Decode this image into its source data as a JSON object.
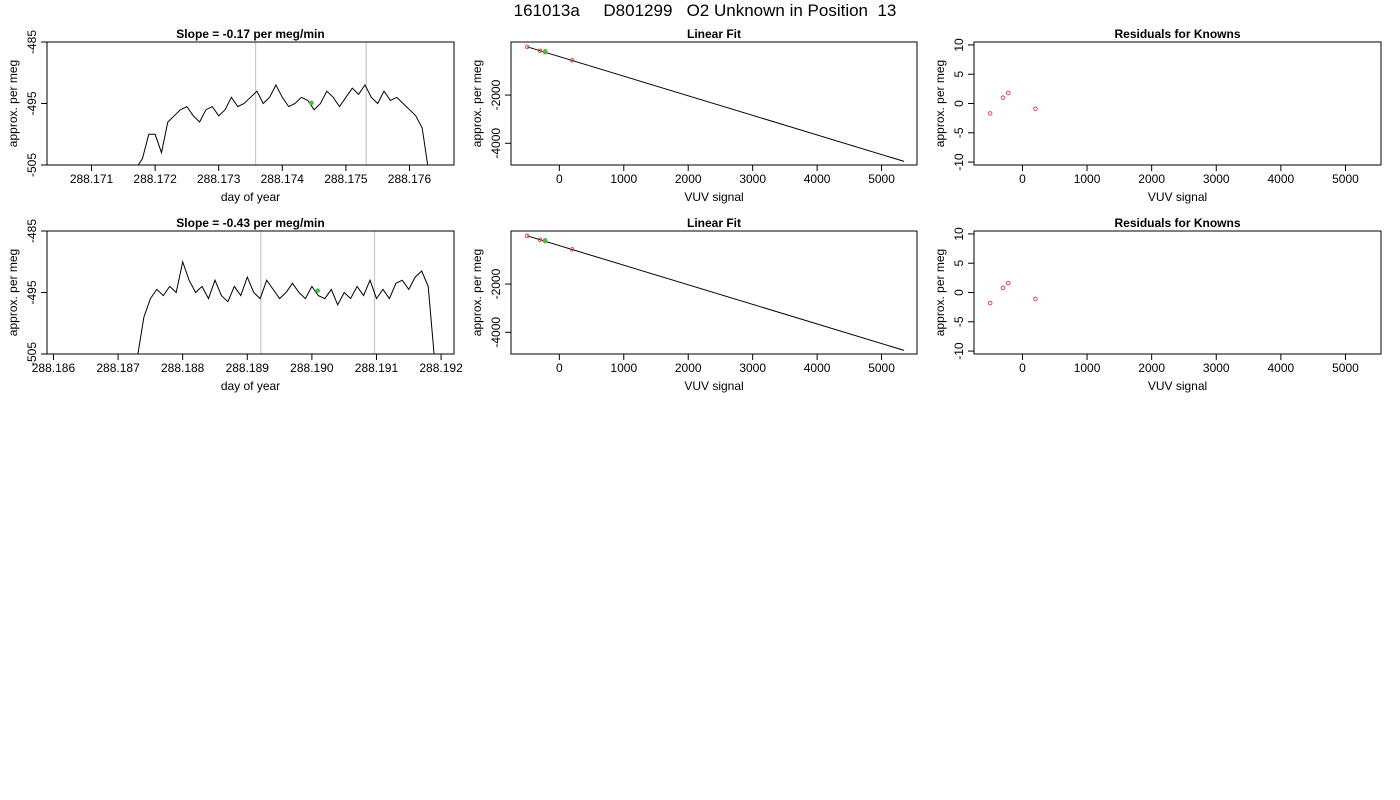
{
  "title": "161013a     D801299   O2 Unknown in Position  13",
  "colors": {
    "line": "#000000",
    "vline": "#c8c8c8",
    "known": "#e0484a",
    "unknown": "#3ec43e"
  },
  "chart_data": [
    {
      "type": "line",
      "title": "Slope =  -0.17  per meg/min",
      "xlabel": "day of year",
      "ylabel": "approx. per meg",
      "xlim": [
        288.1703,
        288.1767
      ],
      "ylim": [
        -505,
        -485
      ],
      "xticks": [
        288.171,
        288.172,
        288.173,
        288.174,
        288.175,
        288.176
      ],
      "xtick_labels": [
        "288.171",
        "288.172",
        "288.173",
        "288.174",
        "288.175",
        "288.176"
      ],
      "yticks": [
        -485,
        -495,
        -505
      ],
      "ytick_labels": [
        "-485",
        "-495",
        "-505"
      ],
      "vlines": [
        288.17358,
        288.17532
      ],
      "unknown_point": {
        "x": 288.17446,
        "y": -494.9
      },
      "series": [
        {
          "x": [
            288.1717,
            288.1718,
            288.1719,
            288.172,
            288.1721,
            288.1722,
            288.1723,
            288.1724,
            288.1725,
            288.1726,
            288.1727,
            288.1728,
            288.1729,
            288.173,
            288.1731,
            288.1732,
            288.1733,
            288.1734,
            288.1735,
            288.1736,
            288.1737,
            288.1738,
            288.1739,
            288.174,
            288.1741,
            288.1742,
            288.1743,
            288.1744,
            288.1745,
            288.1746,
            288.1747,
            288.1748,
            288.1749,
            288.175,
            288.1751,
            288.1752,
            288.1753,
            288.1754,
            288.1755,
            288.1756,
            288.1757,
            288.1758,
            288.1759,
            288.176,
            288.1761,
            288.1762,
            288.1763
          ],
          "y": [
            -505.5,
            -504,
            -500,
            -500,
            -503,
            -498,
            -497,
            -496,
            -495.5,
            -497,
            -498,
            -496,
            -495.5,
            -497,
            -496,
            -494,
            -495.5,
            -495,
            -494,
            -493,
            -495,
            -494,
            -492,
            -494,
            -495.5,
            -495,
            -494,
            -494.5,
            -496,
            -495,
            -493,
            -494,
            -495.5,
            -494,
            -492.5,
            -493.5,
            -492,
            -494,
            -495,
            -493,
            -494.5,
            -494,
            -495,
            -496,
            -497,
            -499,
            -506
          ]
        }
      ]
    },
    {
      "type": "scatter",
      "title": "Linear Fit",
      "xlabel": "VUV signal",
      "ylabel": "approx. per meg",
      "xlim": [
        -750,
        5550
      ],
      "ylim": [
        -4900,
        200
      ],
      "xticks": [
        0,
        1000,
        2000,
        3000,
        4000,
        5000
      ],
      "xtick_labels": [
        "0",
        "1000",
        "2000",
        "3000",
        "4000",
        "5000"
      ],
      "yticks": [
        -2000,
        -4000
      ],
      "ytick_labels": [
        "-2000",
        "-4000"
      ],
      "fit_line": {
        "x": [
          -500,
          5350
        ],
        "y": [
          0,
          -4750
        ]
      },
      "known_points": {
        "x": [
          -500,
          -300,
          -220,
          200
        ],
        "y": [
          0,
          -165,
          -220,
          -560
        ]
      },
      "unknown_point": {
        "x": -220,
        "y": -185
      }
    },
    {
      "type": "scatter",
      "title": "Residuals for Knowns",
      "xlabel": "VUV signal",
      "ylabel": "approx. per meg",
      "xlim": [
        -750,
        5550
      ],
      "ylim": [
        -10.5,
        10.5
      ],
      "xticks": [
        0,
        1000,
        2000,
        3000,
        4000,
        5000
      ],
      "xtick_labels": [
        "0",
        "1000",
        "2000",
        "3000",
        "4000",
        "5000"
      ],
      "yticks": [
        10,
        5,
        0,
        -5,
        -10
      ],
      "ytick_labels": [
        "10",
        "5",
        "0",
        "-5",
        "-10"
      ],
      "known_points": {
        "x": [
          -500,
          -300,
          -220,
          200
        ],
        "y": [
          -1.7,
          1.0,
          1.8,
          -0.9
        ]
      }
    },
    {
      "type": "line",
      "title": "Slope =  -0.43  per meg/min",
      "xlabel": "day of year",
      "ylabel": "approx. per meg",
      "xlim": [
        288.1859,
        288.1922
      ],
      "ylim": [
        -505,
        -485
      ],
      "xticks": [
        288.186,
        288.187,
        288.188,
        288.189,
        288.19,
        288.191,
        288.192
      ],
      "xtick_labels": [
        "288.186",
        "288.187",
        "288.188",
        "288.189",
        "288.190",
        "288.191",
        "288.192"
      ],
      "yticks": [
        -485,
        -495,
        -505
      ],
      "ytick_labels": [
        "-485",
        "-495",
        "-505"
      ],
      "vlines": [
        288.18921,
        288.19097
      ],
      "unknown_point": {
        "x": 288.19009,
        "y": -494.7
      },
      "series": [
        {
          "x": [
            288.1873,
            288.1874,
            288.1875,
            288.1876,
            288.1877,
            288.1878,
            288.1879,
            288.188,
            288.1881,
            288.1882,
            288.1883,
            288.1884,
            288.1885,
            288.1886,
            288.1887,
            288.1888,
            288.1889,
            288.189,
            288.1891,
            288.1892,
            288.1893,
            288.1894,
            288.1895,
            288.1896,
            288.1897,
            288.1898,
            288.1899,
            288.19,
            288.1901,
            288.1902,
            288.1903,
            288.1904,
            288.1905,
            288.1906,
            288.1907,
            288.1908,
            288.1909,
            288.191,
            288.1911,
            288.1912,
            288.1913,
            288.1914,
            288.1915,
            288.1916,
            288.1917,
            288.1918,
            288.1919
          ],
          "y": [
            -505.5,
            -499,
            -496,
            -494.5,
            -495.5,
            -494,
            -495,
            -490,
            -493,
            -495,
            -494,
            -496,
            -493,
            -495.5,
            -496.5,
            -494,
            -495.5,
            -492.5,
            -495,
            -496,
            -493,
            -494.5,
            -496,
            -495,
            -493.5,
            -495,
            -496,
            -494,
            -495.5,
            -496,
            -494.5,
            -497,
            -495,
            -496,
            -494,
            -495.5,
            -493,
            -496,
            -494.5,
            -496,
            -493.5,
            -493,
            -494.5,
            -492.5,
            -491.5,
            -494,
            -506
          ]
        }
      ]
    },
    {
      "type": "scatter",
      "title": "Linear Fit",
      "xlabel": "VUV signal",
      "ylabel": "approx. per meg",
      "xlim": [
        -750,
        5550
      ],
      "ylim": [
        -4900,
        200
      ],
      "xticks": [
        0,
        1000,
        2000,
        3000,
        4000,
        5000
      ],
      "xtick_labels": [
        "0",
        "1000",
        "2000",
        "3000",
        "4000",
        "5000"
      ],
      "yticks": [
        -2000,
        -4000
      ],
      "ytick_labels": [
        "-2000",
        "-4000"
      ],
      "fit_line": {
        "x": [
          -500,
          5350
        ],
        "y": [
          0,
          -4750
        ]
      },
      "known_points": {
        "x": [
          -500,
          -300,
          -220,
          200
        ],
        "y": [
          0,
          -165,
          -220,
          -560
        ]
      },
      "unknown_point": {
        "x": -220,
        "y": -185
      }
    },
    {
      "type": "scatter",
      "title": "Residuals for Knowns",
      "xlabel": "VUV signal",
      "ylabel": "approx. per meg",
      "xlim": [
        -750,
        5550
      ],
      "ylim": [
        -10.5,
        10.5
      ],
      "xticks": [
        0,
        1000,
        2000,
        3000,
        4000,
        5000
      ],
      "xtick_labels": [
        "0",
        "1000",
        "2000",
        "3000",
        "4000",
        "5000"
      ],
      "yticks": [
        10,
        5,
        0,
        -5,
        -10
      ],
      "ytick_labels": [
        "10",
        "5",
        "0",
        "-5",
        "-10"
      ],
      "known_points": {
        "x": [
          -500,
          -300,
          -220,
          200
        ],
        "y": [
          -1.8,
          0.8,
          1.6,
          -1.1
        ]
      }
    }
  ]
}
